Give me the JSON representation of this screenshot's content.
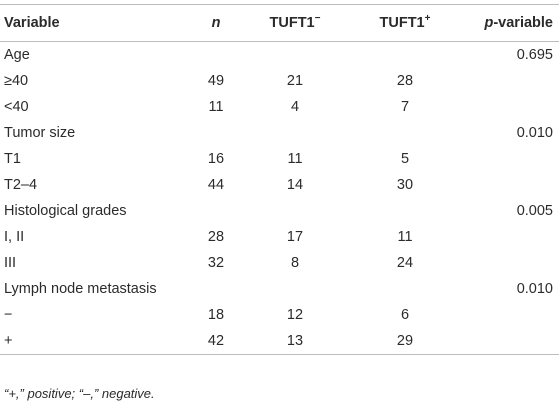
{
  "table": {
    "headers": {
      "variable": "Variable",
      "n": "n",
      "tuft_neg_base": "TUFT1",
      "tuft_neg_sup": "−",
      "tuft_pos_base": "TUFT1",
      "tuft_pos_sup": "+",
      "p_italic": "p",
      "p_rest": "-variable"
    },
    "rows": [
      {
        "label": "Age",
        "n": "",
        "neg": "",
        "pos": "",
        "p": "0.695"
      },
      {
        "label": "≥40",
        "n": "49",
        "neg": "21",
        "pos": "28",
        "p": ""
      },
      {
        "label": "<40",
        "n": "11",
        "neg": "4",
        "pos": "7",
        "p": ""
      },
      {
        "label": "Tumor size",
        "n": "",
        "neg": "",
        "pos": "",
        "p": "0.010"
      },
      {
        "label": "T1",
        "n": "16",
        "neg": "11",
        "pos": "5",
        "p": ""
      },
      {
        "label": "T2–4",
        "n": "44",
        "neg": "14",
        "pos": "30",
        "p": ""
      },
      {
        "label": "Histological grades",
        "n": "",
        "neg": "",
        "pos": "",
        "p": "0.005"
      },
      {
        "label": "I, II",
        "n": "28",
        "neg": "17",
        "pos": "11",
        "p": ""
      },
      {
        "label": "III",
        "n": "32",
        "neg": "8",
        "pos": "24",
        "p": ""
      },
      {
        "label": "Lymph node metastasis",
        "n": "",
        "neg": "",
        "pos": "",
        "p": "0.010"
      },
      {
        "label": "−",
        "n": "18",
        "neg": "12",
        "pos": "6",
        "p": ""
      },
      {
        "label": "+",
        "n": "42",
        "neg": "13",
        "pos": "29",
        "p": ""
      }
    ]
  },
  "footnote": "“+,” positive; “–,” negative."
}
